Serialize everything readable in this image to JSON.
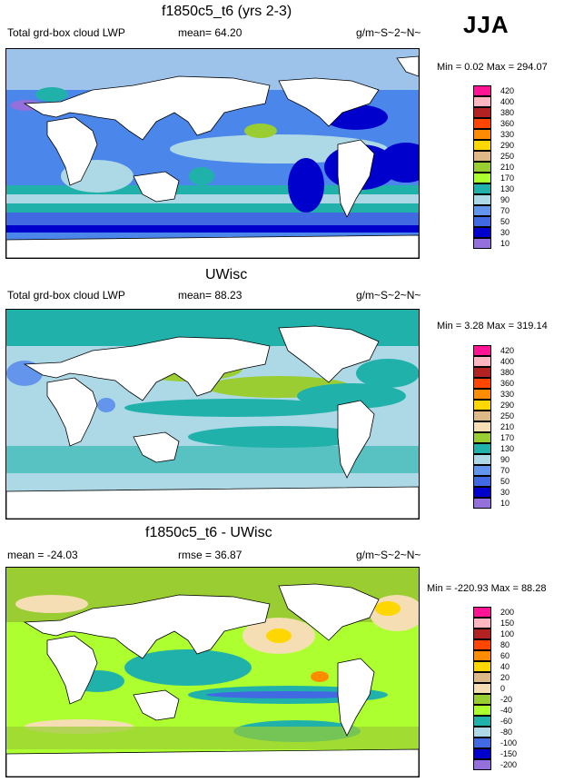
{
  "season": "JJA",
  "panels": [
    {
      "title": "f1850c5_t6 (yrs 2-3)",
      "left_label": "Total grd-box cloud LWP",
      "center_label": "mean=  64.20",
      "units": "g/m~S~2~N~",
      "minmax": "Min =   0.02 Max = 294.07",
      "legend_labels": [
        "420",
        "400",
        "380",
        "360",
        "330",
        "290",
        "250",
        "210",
        "170",
        "130",
        "90",
        "70",
        "50",
        "30",
        "10"
      ],
      "legend_colors": [
        "#ff1493",
        "#ffb6c1",
        "#b22222",
        "#ff4500",
        "#ff8c00",
        "#ffd700",
        "#deb887",
        "#9acd32",
        "#adff2f",
        "#20b2aa",
        "#add8e6",
        "#6495ed",
        "#4169e1",
        "#0000cd",
        "#9370db"
      ]
    },
    {
      "title": "UWisc",
      "left_label": "Total grd-box cloud LWP",
      "center_label": "mean=  88.23",
      "units": "g/m~S~2~N~",
      "minmax": "Min =   3.28 Max = 319.14",
      "legend_labels": [
        "420",
        "400",
        "380",
        "360",
        "330",
        "290",
        "250",
        "210",
        "170",
        "130",
        "90",
        "70",
        "50",
        "30",
        "10"
      ],
      "legend_colors": [
        "#ff1493",
        "#ffb6c1",
        "#b22222",
        "#ff4500",
        "#ff8c00",
        "#ffd700",
        "#deb887",
        "#f5deb3",
        "#9acd32",
        "#20b2aa",
        "#add8e6",
        "#6495ed",
        "#4169e1",
        "#0000cd",
        "#9370db"
      ]
    },
    {
      "title": "f1850c5_t6 - UWisc",
      "left_label": "mean = -24.03",
      "center_label": "rmse =  36.87",
      "units": "g/m~S~2~N~",
      "minmax": "Min = -220.93 Max =  88.28",
      "legend_labels": [
        "200",
        "150",
        "100",
        "80",
        "60",
        "40",
        "20",
        "0",
        "-20",
        "-40",
        "-60",
        "-80",
        "-100",
        "-150",
        "-200"
      ],
      "legend_colors": [
        "#ff1493",
        "#ffb6c1",
        "#b22222",
        "#ff4500",
        "#ff8c00",
        "#ffd700",
        "#deb887",
        "#f5deb3",
        "#9acd32",
        "#adff2f",
        "#20b2aa",
        "#add8e6",
        "#4169e1",
        "#0000cd",
        "#9370db"
      ]
    }
  ]
}
